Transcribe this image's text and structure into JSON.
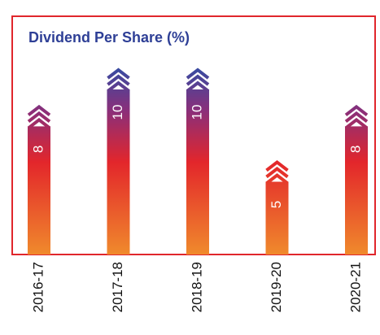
{
  "chart_data": {
    "type": "bar",
    "title": "Dividend Per Share (%)",
    "categories": [
      "2016-17",
      "2017-18",
      "2018-19",
      "2019-20",
      "2020-21"
    ],
    "values": [
      8,
      10,
      10,
      5,
      8
    ]
  }
}
